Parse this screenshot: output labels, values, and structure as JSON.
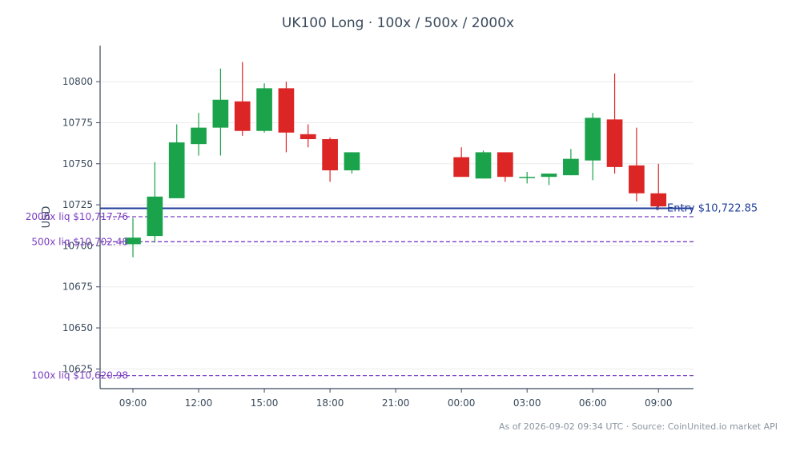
{
  "chart_data": {
    "type": "candlestick",
    "title": "UK100 Long · 100x / 500x / 2000x",
    "ylabel": "USD",
    "xlabel": "",
    "ylim": [
      10613,
      10822
    ],
    "grid": "horizontal",
    "yticks": [
      10625,
      10650,
      10675,
      10700,
      10725,
      10750,
      10775,
      10800
    ],
    "x_ticks": [
      {
        "label": "09:00",
        "hour": 9
      },
      {
        "label": "12:00",
        "hour": 12
      },
      {
        "label": "15:00",
        "hour": 15
      },
      {
        "label": "18:00",
        "hour": 18
      },
      {
        "label": "21:00",
        "hour": 21
      },
      {
        "label": "00:00",
        "hour": 24
      },
      {
        "label": "03:00",
        "hour": 27
      },
      {
        "label": "06:00",
        "hour": 30
      },
      {
        "label": "09:00",
        "hour": 33
      }
    ],
    "x_range": [
      7.5,
      34.6
    ],
    "candles": [
      {
        "hour": 9,
        "open": 10701,
        "high": 10717,
        "low": 10693,
        "close": 10705
      },
      {
        "hour": 10,
        "open": 10706,
        "high": 10751,
        "low": 10702,
        "close": 10730
      },
      {
        "hour": 11,
        "open": 10729,
        "high": 10774,
        "low": 10729,
        "close": 10763
      },
      {
        "hour": 12,
        "open": 10762,
        "high": 10781,
        "low": 10755,
        "close": 10772
      },
      {
        "hour": 13,
        "open": 10772,
        "high": 10808,
        "low": 10755,
        "close": 10789
      },
      {
        "hour": 14,
        "open": 10788,
        "high": 10812,
        "low": 10767,
        "close": 10770
      },
      {
        "hour": 15,
        "open": 10770,
        "high": 10799,
        "low": 10769,
        "close": 10796
      },
      {
        "hour": 16,
        "open": 10796,
        "high": 10800,
        "low": 10757,
        "close": 10769
      },
      {
        "hour": 17,
        "open": 10768,
        "high": 10774,
        "low": 10760,
        "close": 10765
      },
      {
        "hour": 18,
        "open": 10765,
        "high": 10766,
        "low": 10739,
        "close": 10746
      },
      {
        "hour": 19,
        "open": 10746,
        "high": 10757,
        "low": 10744,
        "close": 10757
      },
      {
        "hour": 24,
        "open": 10754,
        "high": 10760,
        "low": 10742,
        "close": 10742
      },
      {
        "hour": 25,
        "open": 10741,
        "high": 10758,
        "low": 10741,
        "close": 10757
      },
      {
        "hour": 26,
        "open": 10757,
        "high": 10757,
        "low": 10739,
        "close": 10742
      },
      {
        "hour": 27,
        "open": 10742,
        "high": 10745,
        "low": 10738,
        "close": 10742
      },
      {
        "hour": 28,
        "open": 10742,
        "high": 10744,
        "low": 10737,
        "close": 10744
      },
      {
        "hour": 29,
        "open": 10743,
        "high": 10759,
        "low": 10743,
        "close": 10753
      },
      {
        "hour": 30,
        "open": 10752,
        "high": 10781,
        "low": 10740,
        "close": 10778
      },
      {
        "hour": 31,
        "open": 10777,
        "high": 10805,
        "low": 10744,
        "close": 10748
      },
      {
        "hour": 32,
        "open": 10749,
        "high": 10772,
        "low": 10727,
        "close": 10732
      },
      {
        "hour": 33,
        "open": 10732,
        "high": 10750,
        "low": 10722,
        "close": 10724
      }
    ],
    "lines": [
      {
        "name": "entry",
        "value": 10722.85,
        "label": "Entry $10,722.85",
        "style": "solid",
        "color": "#1f3c99"
      },
      {
        "name": "liq-2000x",
        "value": 10717.76,
        "label": "2000x liq $10,717.76",
        "style": "dashed",
        "color": "#7b3fc0"
      },
      {
        "name": "liq-500x",
        "value": 10702.48,
        "label": "500x liq $10,702.48",
        "style": "dashed",
        "color": "#7b3fc0"
      },
      {
        "name": "liq-100x",
        "value": 10620.98,
        "label": "100x liq $10,620.98",
        "style": "dashed",
        "color": "#7b3fc0"
      }
    ],
    "colors": {
      "up": "#1aa34a",
      "down": "#dc2626",
      "axis": "#3a4a5c",
      "grid": "#ebebeb"
    }
  },
  "footer": "As of 2026-09-02 09:34 UTC · Source: CoinUnited.io market API"
}
